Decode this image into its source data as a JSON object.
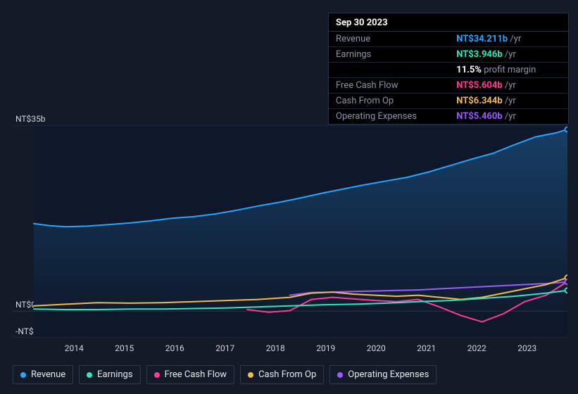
{
  "tooltip": {
    "date": "Sep 30 2023",
    "rows": [
      {
        "label": "Revenue",
        "value": "NT$34.211b",
        "suffix": "/yr",
        "color": "#28a5ff"
      },
      {
        "label": "Earnings",
        "value": "NT$3.946b",
        "suffix": "/yr",
        "color": "#2fe6c0"
      },
      {
        "label": "",
        "value": "11.5%",
        "suffix": "profit margin",
        "color": "#ffffff"
      },
      {
        "label": "Free Cash Flow",
        "value": "NT$5.604b",
        "suffix": "/yr",
        "color": "#ff3b9a"
      },
      {
        "label": "Cash From Op",
        "value": "NT$6.344b",
        "suffix": "/yr",
        "color": "#f2b94b"
      },
      {
        "label": "Operating Expenses",
        "value": "NT$5.460b",
        "suffix": "/yr",
        "color": "#9a5cff"
      }
    ]
  },
  "chart": {
    "bg": "#131b29",
    "plot_bg": "#0f172a",
    "grid_color": "#2a3447",
    "y_ticks": [
      {
        "label": "NT$35b",
        "value": 35
      },
      {
        "label": "NT$0",
        "value": 0
      },
      {
        "label": "-NT$5b",
        "value": -5
      }
    ],
    "y_min": -5,
    "y_max": 35,
    "x_labels": [
      "2014",
      "2015",
      "2016",
      "2017",
      "2018",
      "2019",
      "2020",
      "2021",
      "2022",
      "2023"
    ],
    "series": {
      "revenue": {
        "name": "Revenue",
        "color": "#28a5ff",
        "area": true,
        "pts": [
          [
            0,
            16.5
          ],
          [
            3,
            16.1
          ],
          [
            6,
            15.9
          ],
          [
            10,
            16.0
          ],
          [
            14,
            16.3
          ],
          [
            18,
            16.6
          ],
          [
            22,
            17.0
          ],
          [
            26,
            17.5
          ],
          [
            30,
            17.8
          ],
          [
            34,
            18.3
          ],
          [
            38,
            19.0
          ],
          [
            42,
            19.8
          ],
          [
            46,
            20.5
          ],
          [
            50,
            21.3
          ],
          [
            54,
            22.2
          ],
          [
            58,
            23.0
          ],
          [
            62,
            23.8
          ],
          [
            66,
            24.5
          ],
          [
            70,
            25.2
          ],
          [
            74,
            26.2
          ],
          [
            78,
            27.4
          ],
          [
            82,
            28.6
          ],
          [
            86,
            29.7
          ],
          [
            90,
            31.3
          ],
          [
            94,
            32.8
          ],
          [
            98,
            33.6
          ],
          [
            100,
            34.2
          ]
        ]
      },
      "earnings": {
        "name": "Earnings",
        "color": "#2fe6c0",
        "pts": [
          [
            0,
            0.4
          ],
          [
            6,
            0.3
          ],
          [
            12,
            0.3
          ],
          [
            18,
            0.4
          ],
          [
            24,
            0.4
          ],
          [
            30,
            0.5
          ],
          [
            36,
            0.6
          ],
          [
            42,
            0.8
          ],
          [
            48,
            1.0
          ],
          [
            54,
            1.2
          ],
          [
            60,
            1.3
          ],
          [
            66,
            1.5
          ],
          [
            72,
            1.8
          ],
          [
            78,
            2.0
          ],
          [
            84,
            2.4
          ],
          [
            90,
            2.8
          ],
          [
            96,
            3.4
          ],
          [
            100,
            3.9
          ]
        ]
      },
      "fcf": {
        "name": "Free Cash Flow",
        "color": "#ff3b9a",
        "pts": [
          [
            40,
            0.3
          ],
          [
            44,
            -0.2
          ],
          [
            48,
            0.1
          ],
          [
            52,
            2.2
          ],
          [
            56,
            2.6
          ],
          [
            60,
            2.3
          ],
          [
            64,
            2.0
          ],
          [
            68,
            1.8
          ],
          [
            72,
            2.2
          ],
          [
            76,
            0.8
          ],
          [
            80,
            -0.8
          ],
          [
            84,
            -2.0
          ],
          [
            88,
            -0.5
          ],
          [
            92,
            1.8
          ],
          [
            96,
            3.0
          ],
          [
            100,
            5.6
          ]
        ]
      },
      "cfo": {
        "name": "Cash From Op",
        "color": "#f2b94b",
        "pts": [
          [
            0,
            1.0
          ],
          [
            6,
            1.3
          ],
          [
            12,
            1.6
          ],
          [
            18,
            1.5
          ],
          [
            24,
            1.6
          ],
          [
            30,
            1.8
          ],
          [
            36,
            2.0
          ],
          [
            42,
            2.2
          ],
          [
            48,
            2.6
          ],
          [
            52,
            3.4
          ],
          [
            56,
            3.6
          ],
          [
            60,
            3.2
          ],
          [
            64,
            3.0
          ],
          [
            68,
            2.8
          ],
          [
            72,
            3.0
          ],
          [
            76,
            2.6
          ],
          [
            80,
            2.2
          ],
          [
            84,
            2.6
          ],
          [
            88,
            3.4
          ],
          [
            92,
            4.2
          ],
          [
            96,
            5.0
          ],
          [
            100,
            6.3
          ]
        ]
      },
      "opex": {
        "name": "Operating Expenses",
        "color": "#9a5cff",
        "pts": [
          [
            48,
            3.0
          ],
          [
            52,
            3.5
          ],
          [
            56,
            3.6
          ],
          [
            60,
            3.7
          ],
          [
            64,
            3.8
          ],
          [
            68,
            3.9
          ],
          [
            72,
            4.0
          ],
          [
            76,
            4.2
          ],
          [
            80,
            4.4
          ],
          [
            84,
            4.6
          ],
          [
            88,
            4.8
          ],
          [
            92,
            5.0
          ],
          [
            96,
            5.2
          ],
          [
            100,
            5.5
          ]
        ]
      }
    },
    "legend": [
      "revenue",
      "earnings",
      "fcf",
      "cfo",
      "opex"
    ]
  }
}
